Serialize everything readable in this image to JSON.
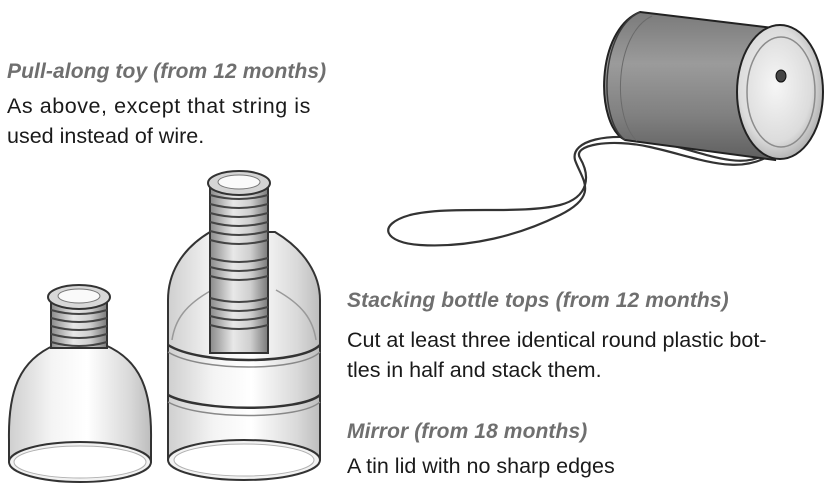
{
  "pull_along": {
    "heading": "Pull-along toy (from 12 months)",
    "lines": [
      "As above, except that string is",
      "used instead of wire."
    ]
  },
  "stacking": {
    "heading": "Stacking bottle tops (from 12 months)",
    "lines": [
      "Cut at least three identical round plastic bot-",
      "tles in half and stack them."
    ]
  },
  "mirror": {
    "heading": "Mirror (from 18 months)",
    "lines": [
      "A tin lid with no sharp edges"
    ]
  },
  "illustrations": {
    "can": "tin-can-pull-toy",
    "single_bottle": "bottle-top",
    "stacked_bottles": "stacked-bottle-tops"
  }
}
